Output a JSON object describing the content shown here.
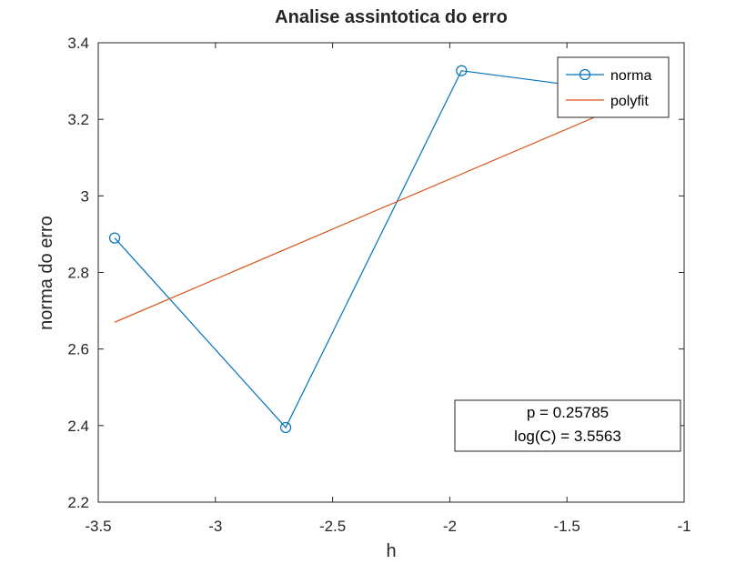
{
  "chart_data": {
    "type": "line",
    "title": "Analise assintotica do erro",
    "xlabel": "h",
    "ylabel": "norma do erro",
    "xlim": [
      -3.5,
      -1
    ],
    "ylim": [
      2.2,
      3.4
    ],
    "xticks": [
      -3.5,
      -3,
      -2.5,
      -2,
      -1.5,
      -1
    ],
    "xtick_labels": [
      "-3.5",
      "-3",
      "-2.5",
      "-2",
      "-1.5",
      "-1"
    ],
    "yticks": [
      2.2,
      2.4,
      2.6,
      2.8,
      3.0,
      3.2,
      3.4
    ],
    "ytick_labels": [
      "2.2",
      "2.4",
      "2.6",
      "2.8",
      "3",
      "3.2",
      "3.4"
    ],
    "grid": false,
    "legend_position": "top-right",
    "series": [
      {
        "name": "norma",
        "color": "#0072BD",
        "marker": "circle",
        "x": [
          -3.43,
          -2.7,
          -1.95,
          -1.3
        ],
        "y": [
          2.89,
          2.395,
          3.327,
          3.275
        ]
      },
      {
        "name": "polyfit",
        "color": "#D95319",
        "marker": "none",
        "x": [
          -3.43,
          -1.3
        ],
        "y": [
          2.67,
          3.227
        ]
      }
    ],
    "annotation": {
      "lines": [
        "p = 0.25785",
        "log(C) = 3.5563"
      ],
      "position": "bottom-right"
    }
  }
}
